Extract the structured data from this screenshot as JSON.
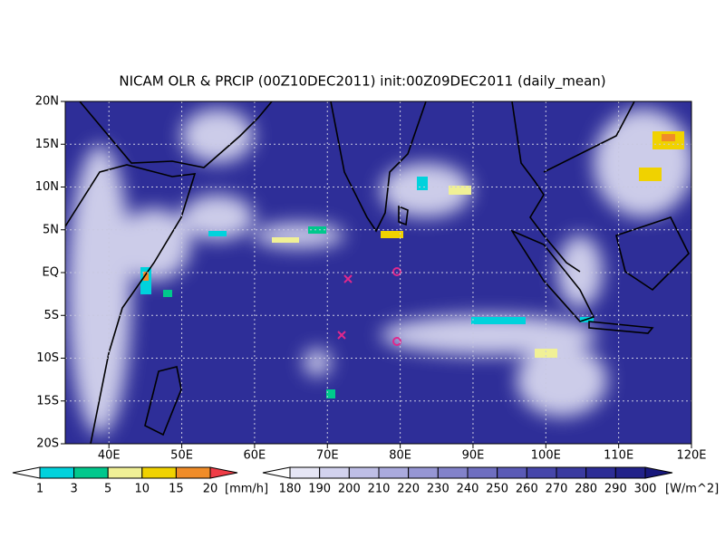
{
  "map": {
    "title": "NICAM OLR & PRCIP (00Z10DEC2011) init:00Z09DEC2011 (daily_mean)",
    "xlim": [
      34,
      120
    ],
    "ylim": [
      -20,
      20
    ],
    "xticks": [
      {
        "value": 40,
        "label": "40E"
      },
      {
        "value": 50,
        "label": "50E"
      },
      {
        "value": 60,
        "label": "60E"
      },
      {
        "value": 70,
        "label": "70E"
      },
      {
        "value": 80,
        "label": "80E"
      },
      {
        "value": 90,
        "label": "90E"
      },
      {
        "value": 100,
        "label": "100E"
      },
      {
        "value": 110,
        "label": "110E"
      },
      {
        "value": 120,
        "label": "120E"
      }
    ],
    "yticks": [
      {
        "value": 20,
        "label": "20N"
      },
      {
        "value": 15,
        "label": "15N"
      },
      {
        "value": 10,
        "label": "10N"
      },
      {
        "value": 5,
        "label": "5N"
      },
      {
        "value": 0,
        "label": "EQ"
      },
      {
        "value": -5,
        "label": "5S"
      },
      {
        "value": -10,
        "label": "10S"
      },
      {
        "value": -15,
        "label": "15S"
      },
      {
        "value": -20,
        "label": "20S"
      }
    ],
    "grid": true
  },
  "precip_colorbar": {
    "levels": [
      1,
      3,
      5,
      10,
      15,
      20
    ],
    "unit": "[mm/h]",
    "colors": [
      "#ffffff",
      "#00d2dc",
      "#00c88c",
      "#f0f096",
      "#f0d200",
      "#f08c28",
      "#f03c46"
    ]
  },
  "olr_colorbar": {
    "levels": [
      180,
      190,
      200,
      210,
      220,
      230,
      240,
      250,
      260,
      270,
      280,
      290,
      300
    ],
    "unit": "[W/m^2]",
    "colors": [
      "#ffffff",
      "#e6e6f5",
      "#d2d2ee",
      "#bebee6",
      "#aaaade",
      "#9696d4",
      "#8282ca",
      "#6e6ec0",
      "#5a5ab6",
      "#4646aa",
      "#3a3aa0",
      "#2d2d96",
      "#22228a",
      "#18187c"
    ]
  }
}
